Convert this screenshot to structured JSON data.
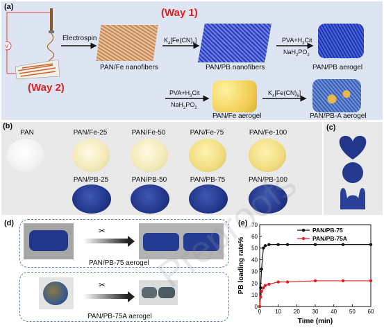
{
  "panel_labels": {
    "a": "(a)",
    "b": "(b)",
    "c": "(c)",
    "d": "(d)",
    "e": "(e)"
  },
  "panel_a": {
    "way1": "(Way 1)",
    "way2": "(Way 2)",
    "electrospin": "Electrospin",
    "k4_reagent": "K4[Fe(CN)6]",
    "pva_h3cit": "PVA+H3Cit",
    "nah2po2": "NaH2PO2",
    "pan_fe_nanofibers": "PAN/Fe nanofibers",
    "pan_pb_nanofibers": "PAN/PB nanofibers",
    "pan_pb_aerogel": "PAN/PB aerogel",
    "pan_fe_aerogel": "PAN/Fe aerogel",
    "pan_pb_a_aerogel": "PAN/PB-A aerogel",
    "voltage_symbol": "V"
  },
  "panel_b": {
    "row1": [
      "PAN",
      "PAN/Fe-25",
      "PAN/Fe-50",
      "PAN/Fe-75",
      "PAN/Fe-100"
    ],
    "row2": [
      "PAN/PB-25",
      "PAN/PB-50",
      "PAN/PB-75",
      "PAN/PB-100"
    ]
  },
  "panel_d": {
    "caption1": "PAN/PB-75 aerogel",
    "caption2": "PAN/PB-75A aerogel"
  },
  "colors": {
    "way": "#e02020",
    "series1": "#111111",
    "series2": "#e02020",
    "panel_bg": "#dde5f2"
  },
  "chart_data": {
    "type": "line",
    "xlabel": "Time (min)",
    "ylabel": "PB loading rate%",
    "xlim": [
      0,
      60
    ],
    "ylim": [
      0,
      70
    ],
    "xticks": [
      0,
      10,
      20,
      30,
      40,
      50,
      60
    ],
    "yticks": [
      0,
      10,
      20,
      30,
      40,
      50,
      60,
      70
    ],
    "legend_position": "top-right",
    "series": [
      {
        "name": "PAN/PB-75",
        "color": "#111111",
        "x": [
          0,
          0.5,
          1,
          2,
          3,
          5,
          10,
          15,
          30,
          45,
          60
        ],
        "y": [
          0,
          16,
          32,
          50,
          52,
          53,
          53,
          53,
          53,
          53,
          53
        ]
      },
      {
        "name": "PAN/PB-75A",
        "color": "#e02020",
        "x": [
          0,
          0.5,
          1,
          2,
          3,
          5,
          10,
          15,
          30,
          45,
          60
        ],
        "y": [
          0,
          8,
          13,
          16,
          18,
          19,
          21,
          21,
          22,
          22,
          22
        ]
      }
    ]
  }
}
